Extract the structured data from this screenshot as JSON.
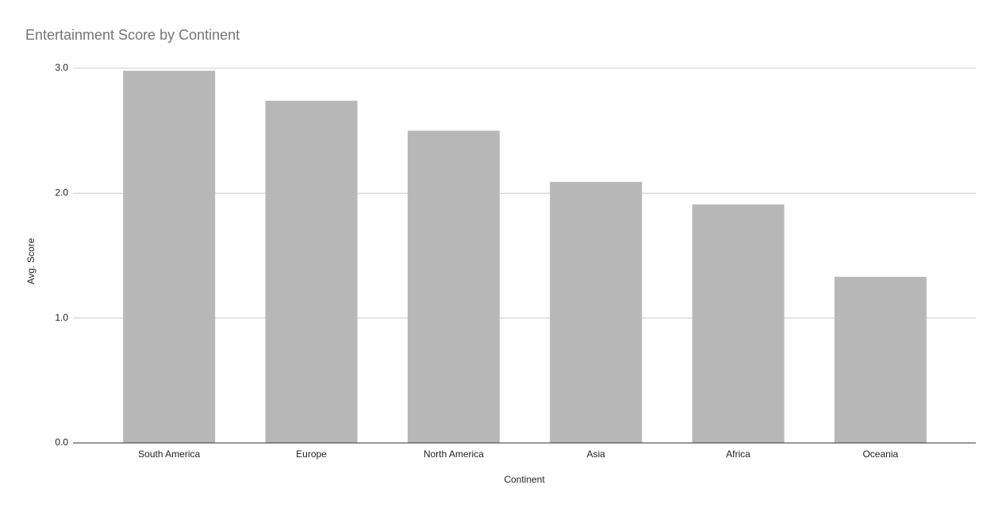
{
  "chart_data": {
    "type": "bar",
    "title": "Entertainment Score by Continent",
    "x_label": "Continent",
    "y_label": "Avg. Score",
    "categories": [
      "South America",
      "Europe",
      "North America",
      "Asia",
      "Africa",
      "Oceania"
    ],
    "values": [
      2.98,
      2.74,
      2.5,
      2.09,
      1.91,
      1.33
    ],
    "color": "#b7b7b7",
    "ylim": [
      0,
      3
    ],
    "yticks": [
      {
        "value": 0,
        "label": "0.0"
      },
      {
        "value": 1,
        "label": "1.0"
      },
      {
        "value": 2,
        "label": "2.0"
      },
      {
        "value": 3,
        "label": "3.0"
      }
    ],
    "grid": true
  }
}
